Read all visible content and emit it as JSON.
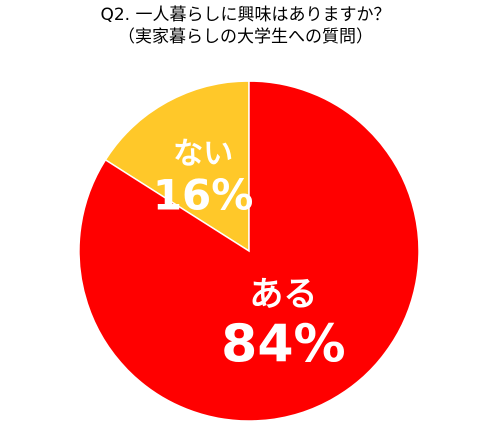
{
  "chart_data": {
    "type": "pie",
    "title": "Q2. 一人暮らしに興味はありますか？",
    "subtitle": "（実家暮らしの大学生への質問）",
    "categories": [
      "ない",
      "ある"
    ],
    "values": [
      16,
      84
    ],
    "labels": [
      "16%",
      "84%"
    ],
    "colors": [
      "#FFC829",
      "#FF0000"
    ],
    "start_angle_deg": 0,
    "direction": "counterclockwise-from-top"
  }
}
